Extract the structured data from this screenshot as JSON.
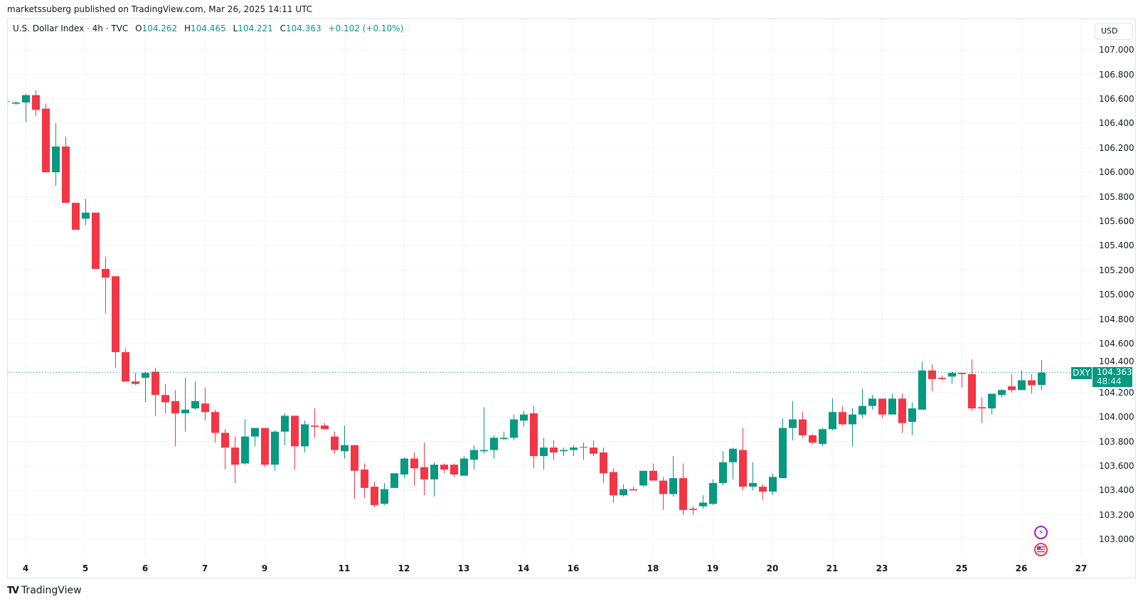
{
  "header": {
    "published": "marketssuberg published on TradingView.com, Mar 26, 2025 14:11 UTC"
  },
  "legend": {
    "title": "U.S. Dollar Index · 4h · TVC",
    "o_label": "O",
    "o": "104.262",
    "h_label": "H",
    "h": "104.465",
    "l_label": "L",
    "l": "104.221",
    "c_label": "C",
    "c": "104.363",
    "change": "+0.102 (+0.10%)"
  },
  "currency_button": "USD",
  "last_price": {
    "symbol": "DXY",
    "price": "104.363",
    "countdown": "48:44"
  },
  "footer": {
    "logo_text": "TradingView",
    "logo_mark": "TV"
  },
  "icons": {
    "event_1": "lightning-icon",
    "event_2": "us-flag-icon"
  },
  "colors": {
    "up": "#089981",
    "down": "#F23645",
    "grid": "#f0f3fa",
    "text": "#131722"
  },
  "chart_data": {
    "type": "candlestick",
    "title": "U.S. Dollar Index · 4h · TVC",
    "ylabel": "USD",
    "ylim": [
      102.8,
      107.1
    ],
    "grid": true,
    "last_price": 104.363,
    "yticks": [
      "107.000",
      "106.800",
      "106.600",
      "106.400",
      "106.200",
      "106.000",
      "105.800",
      "105.600",
      "105.400",
      "105.200",
      "105.000",
      "104.800",
      "104.600",
      "104.400",
      "104.200",
      "104.000",
      "103.800",
      "103.600",
      "103.400",
      "103.200",
      "103.000"
    ],
    "xticks": [
      {
        "label": "4",
        "bar": 2
      },
      {
        "label": "5",
        "bar": 8
      },
      {
        "label": "6",
        "bar": 14
      },
      {
        "label": "7",
        "bar": 20
      },
      {
        "label": "9",
        "bar": 26
      },
      {
        "label": "11",
        "bar": 34
      },
      {
        "label": "12",
        "bar": 40
      },
      {
        "label": "13",
        "bar": 46
      },
      {
        "label": "14",
        "bar": 52
      },
      {
        "label": "16",
        "bar": 57
      },
      {
        "label": "18",
        "bar": 65
      },
      {
        "label": "19",
        "bar": 71
      },
      {
        "label": "20",
        "bar": 77
      },
      {
        "label": "21",
        "bar": 83
      },
      {
        "label": "23",
        "bar": 88
      },
      {
        "label": "25",
        "bar": 96
      },
      {
        "label": "26",
        "bar": 102
      },
      {
        "label": "27",
        "bar": 108
      }
    ],
    "ohlc_fields": [
      "open",
      "high",
      "low",
      "close"
    ],
    "ohlc": [
      [
        106.575,
        106.58,
        106.57,
        106.58
      ],
      [
        106.56,
        106.58,
        106.55,
        106.57
      ],
      [
        106.57,
        106.64,
        106.41,
        106.63
      ],
      [
        106.63,
        106.67,
        106.46,
        106.51
      ],
      [
        106.52,
        106.56,
        106.0,
        106.0
      ],
      [
        106.0,
        106.4,
        105.89,
        106.21
      ],
      [
        106.21,
        106.29,
        105.75,
        105.75
      ],
      [
        105.75,
        105.75,
        105.53,
        105.53
      ],
      [
        105.62,
        105.78,
        105.57,
        105.67
      ],
      [
        105.67,
        105.67,
        105.21,
        105.21
      ],
      [
        105.21,
        105.31,
        104.85,
        105.14
      ],
      [
        105.15,
        105.15,
        104.4,
        104.53
      ],
      [
        104.53,
        104.56,
        104.29,
        104.29
      ],
      [
        104.29,
        104.36,
        104.26,
        104.27
      ],
      [
        104.32,
        104.37,
        104.12,
        104.36
      ],
      [
        104.37,
        104.4,
        104.01,
        104.18
      ],
      [
        104.18,
        104.27,
        104.03,
        104.12
      ],
      [
        104.13,
        104.22,
        103.76,
        104.03
      ],
      [
        104.03,
        104.32,
        103.88,
        104.06
      ],
      [
        104.07,
        104.29,
        104.06,
        104.13
      ],
      [
        104.11,
        104.24,
        103.97,
        104.04
      ],
      [
        104.04,
        104.06,
        103.79,
        103.87
      ],
      [
        103.87,
        103.9,
        103.57,
        103.75
      ],
      [
        103.75,
        103.84,
        103.46,
        103.61
      ],
      [
        103.62,
        103.98,
        103.61,
        103.84
      ],
      [
        103.84,
        103.91,
        103.76,
        103.91
      ],
      [
        103.91,
        103.91,
        103.59,
        103.61
      ],
      [
        103.61,
        103.89,
        103.56,
        103.88
      ],
      [
        103.88,
        104.03,
        103.77,
        104.01
      ],
      [
        104.01,
        104.01,
        103.57,
        103.76
      ],
      [
        103.76,
        103.97,
        103.71,
        103.94
      ],
      [
        103.93,
        104.07,
        103.83,
        103.92
      ],
      [
        103.93,
        103.95,
        103.9,
        103.9
      ],
      [
        103.84,
        103.88,
        103.7,
        103.73
      ],
      [
        103.72,
        103.93,
        103.66,
        103.77
      ],
      [
        103.77,
        103.77,
        103.33,
        103.56
      ],
      [
        103.57,
        103.62,
        103.34,
        103.42
      ],
      [
        103.43,
        103.47,
        103.26,
        103.28
      ],
      [
        103.29,
        103.46,
        103.28,
        103.41
      ],
      [
        103.42,
        103.54,
        103.42,
        103.54
      ],
      [
        103.53,
        103.67,
        103.5,
        103.66
      ],
      [
        103.66,
        103.71,
        103.44,
        103.58
      ],
      [
        103.59,
        103.79,
        103.36,
        103.49
      ],
      [
        103.49,
        103.63,
        103.35,
        103.61
      ],
      [
        103.61,
        103.62,
        103.54,
        103.57
      ],
      [
        103.61,
        103.62,
        103.51,
        103.53
      ],
      [
        103.52,
        103.68,
        103.52,
        103.66
      ],
      [
        103.65,
        103.77,
        103.57,
        103.73
      ],
      [
        103.72,
        104.08,
        103.7,
        103.73
      ],
      [
        103.73,
        103.85,
        103.66,
        103.83
      ],
      [
        103.82,
        103.88,
        103.81,
        103.83
      ],
      [
        103.83,
        104.02,
        103.81,
        103.98
      ],
      [
        103.97,
        104.05,
        103.92,
        104.02
      ],
      [
        104.03,
        104.09,
        103.58,
        103.68
      ],
      [
        103.68,
        103.83,
        103.57,
        103.75
      ],
      [
        103.75,
        103.81,
        103.65,
        103.71
      ],
      [
        103.72,
        103.75,
        103.68,
        103.73
      ],
      [
        103.73,
        103.77,
        103.68,
        103.75
      ],
      [
        103.75,
        103.79,
        103.65,
        103.755
      ],
      [
        103.75,
        103.81,
        103.68,
        103.7
      ],
      [
        103.71,
        103.75,
        103.46,
        103.54
      ],
      [
        103.55,
        103.58,
        103.3,
        103.36
      ],
      [
        103.36,
        103.45,
        103.35,
        103.41
      ],
      [
        103.41,
        103.43,
        103.4,
        103.4
      ],
      [
        103.44,
        103.56,
        103.43,
        103.56
      ],
      [
        103.56,
        103.62,
        103.48,
        103.48
      ],
      [
        103.48,
        103.51,
        103.24,
        103.37
      ],
      [
        103.37,
        103.68,
        103.35,
        103.5
      ],
      [
        103.5,
        103.62,
        103.2,
        103.24
      ],
      [
        103.25,
        103.27,
        103.2,
        103.24
      ],
      [
        103.27,
        103.36,
        103.25,
        103.3
      ],
      [
        103.29,
        103.49,
        103.28,
        103.46
      ],
      [
        103.46,
        103.72,
        103.44,
        103.63
      ],
      [
        103.63,
        103.75,
        103.49,
        103.74
      ],
      [
        103.73,
        103.91,
        103.4,
        103.43
      ],
      [
        103.43,
        103.63,
        103.4,
        103.46
      ],
      [
        103.43,
        103.45,
        103.32,
        103.39
      ],
      [
        103.39,
        103.54,
        103.36,
        103.51
      ],
      [
        103.5,
        103.99,
        103.5,
        103.91
      ],
      [
        103.91,
        104.13,
        103.81,
        103.98
      ],
      [
        103.98,
        104.04,
        103.83,
        103.85
      ],
      [
        103.85,
        103.86,
        103.78,
        103.79
      ],
      [
        103.78,
        103.91,
        103.76,
        103.9
      ],
      [
        103.9,
        104.15,
        103.89,
        104.04
      ],
      [
        104.04,
        104.09,
        103.93,
        103.94
      ],
      [
        103.94,
        104.07,
        103.76,
        104.02
      ],
      [
        104.02,
        104.23,
        103.99,
        104.09
      ],
      [
        104.09,
        104.18,
        104.06,
        104.15
      ],
      [
        104.15,
        104.15,
        103.99,
        104.02
      ],
      [
        104.02,
        104.19,
        104.02,
        104.15
      ],
      [
        104.15,
        104.19,
        103.87,
        103.95
      ],
      [
        103.96,
        104.12,
        103.85,
        104.07
      ],
      [
        104.06,
        104.45,
        104.06,
        104.38
      ],
      [
        104.38,
        104.43,
        104.21,
        104.31
      ],
      [
        104.32,
        104.34,
        104.3,
        104.31
      ],
      [
        104.33,
        104.37,
        104.27,
        104.36
      ],
      [
        104.36,
        104.36,
        104.24,
        104.35
      ],
      [
        104.35,
        104.47,
        104.05,
        104.07
      ],
      [
        104.08,
        104.16,
        103.95,
        104.07
      ],
      [
        104.07,
        104.19,
        104.02,
        104.19
      ],
      [
        104.18,
        104.23,
        104.16,
        104.22
      ],
      [
        104.25,
        104.35,
        104.2,
        104.22
      ],
      [
        104.22,
        104.38,
        104.22,
        104.3
      ],
      [
        104.3,
        104.35,
        104.19,
        104.26
      ],
      [
        104.262,
        104.465,
        104.221,
        104.363
      ]
    ]
  }
}
